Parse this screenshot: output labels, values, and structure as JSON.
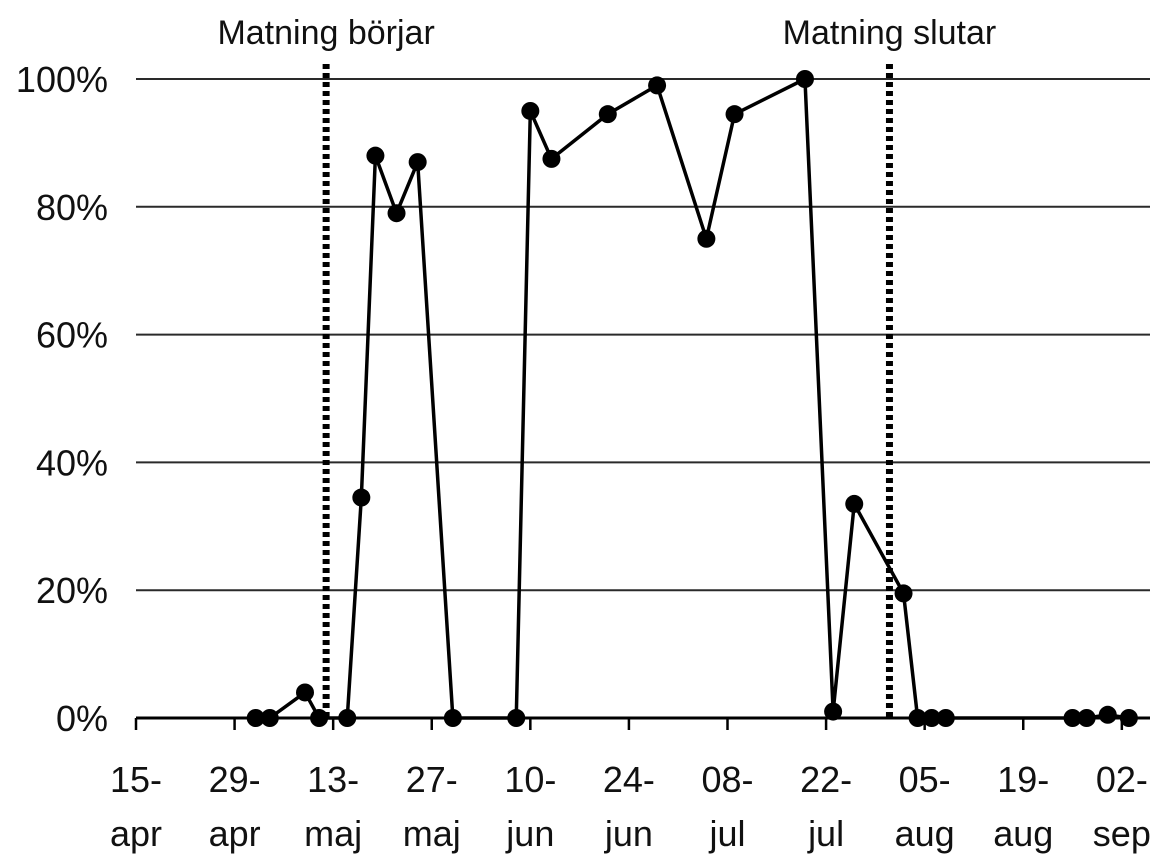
{
  "chart_data": {
    "type": "line",
    "title": "",
    "xlabel": "",
    "ylabel": "",
    "ylim": [
      0,
      100
    ],
    "y_ticks": [
      {
        "value": 0,
        "label": "0%"
      },
      {
        "value": 20,
        "label": "20%"
      },
      {
        "value": 40,
        "label": "40%"
      },
      {
        "value": 60,
        "label": "60%"
      },
      {
        "value": 80,
        "label": "80%"
      },
      {
        "value": 100,
        "label": "100%"
      }
    ],
    "xlim": [
      "2009-04-15",
      "2009-09-06"
    ],
    "x_ticks": [
      {
        "date": "2009-04-15",
        "line1": "15-",
        "line2": "apr"
      },
      {
        "date": "2009-04-29",
        "line1": "29-",
        "line2": "apr"
      },
      {
        "date": "2009-05-13",
        "line1": "13-",
        "line2": "maj"
      },
      {
        "date": "2009-05-27",
        "line1": "27-",
        "line2": "maj"
      },
      {
        "date": "2009-06-10",
        "line1": "10-",
        "line2": "jun"
      },
      {
        "date": "2009-06-24",
        "line1": "24-",
        "line2": "jun"
      },
      {
        "date": "2009-07-08",
        "line1": "08-",
        "line2": "jul"
      },
      {
        "date": "2009-07-22",
        "line1": "22-",
        "line2": "jul"
      },
      {
        "date": "2009-08-05",
        "line1": "05-",
        "line2": "aug"
      },
      {
        "date": "2009-08-19",
        "line1": "19-",
        "line2": "aug"
      },
      {
        "date": "2009-09-02",
        "line1": "02-",
        "line2": "sep"
      }
    ],
    "grid": "horizontal",
    "legend": "none",
    "series": [
      {
        "x": [
          "2009-05-02",
          "2009-05-04",
          "2009-05-09",
          "2009-05-11",
          "2009-05-15",
          "2009-05-17",
          "2009-05-19",
          "2009-05-22",
          "2009-05-25",
          "2009-05-30",
          "2009-06-08",
          "2009-06-10",
          "2009-06-13",
          "2009-06-21",
          "2009-06-28",
          "2009-07-05",
          "2009-07-09",
          "2009-07-19",
          "2009-07-23",
          "2009-07-26",
          "2009-08-02",
          "2009-08-04",
          "2009-08-06",
          "2009-08-08",
          "2009-08-26",
          "2009-08-28",
          "2009-08-31",
          "2009-09-03"
        ],
        "values": [
          0,
          0,
          4,
          0,
          0,
          34.5,
          88,
          79,
          87,
          0,
          0,
          95,
          87.5,
          94.5,
          99,
          75,
          94.5,
          100,
          1,
          33.5,
          19.5,
          0,
          0,
          0,
          0,
          0,
          0.5,
          0
        ],
        "color": "#000000"
      }
    ],
    "annotations": [
      {
        "date": "2009-05-12",
        "label": "Matning börjar",
        "style": "dotted vertical line"
      },
      {
        "date": "2009-07-31",
        "label": "Matning slutar",
        "style": "dotted vertical line"
      }
    ]
  }
}
